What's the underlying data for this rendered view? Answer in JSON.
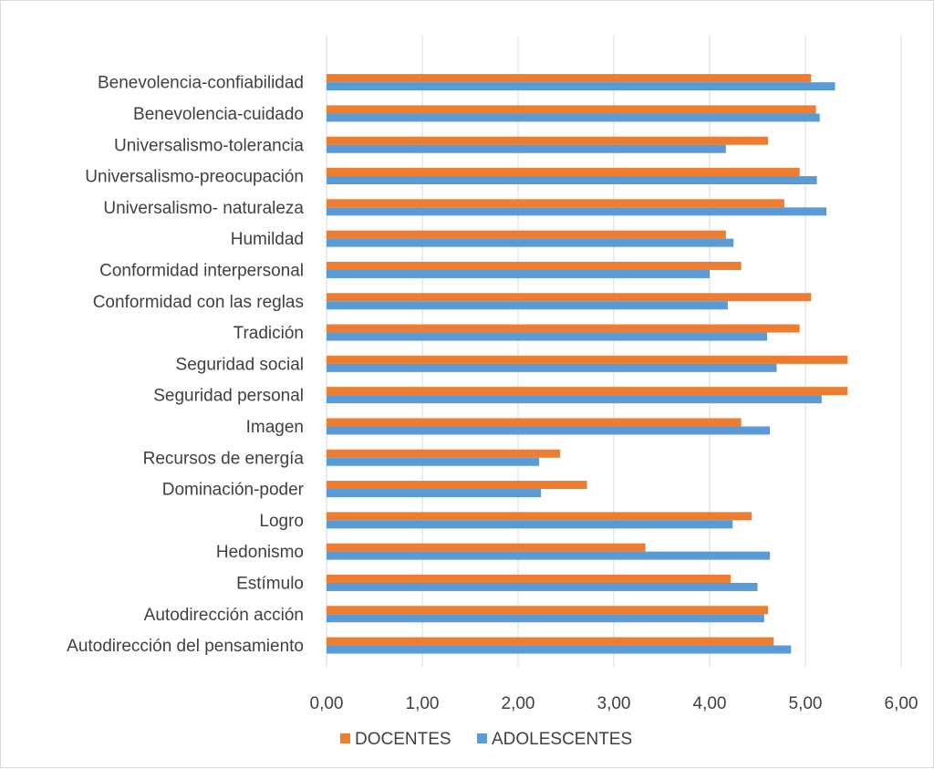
{
  "chart_data": {
    "type": "bar",
    "orientation": "horizontal",
    "title": "",
    "xlabel": "",
    "ylabel": "",
    "xlim": [
      0,
      6
    ],
    "x_ticks": [
      "0,00",
      "1,00",
      "2,00",
      "3,00",
      "4,00",
      "5,00",
      "6,00"
    ],
    "grid": "vertical",
    "legend_position": "bottom",
    "categories": [
      "Benevolencia-confiabilidad",
      "Benevolencia-cuidado",
      "Universalismo-tolerancia",
      "Universalismo-preocupación",
      "Universalismo- naturaleza",
      "Humildad",
      "Conformidad interpersonal",
      "Conformidad con las reglas",
      "Tradición",
      "Seguridad social",
      "Seguridad personal",
      "Imagen",
      "Recursos de energía",
      "Dominación-poder",
      "Logro",
      "Hedonismo",
      "Estímulo",
      "Autodirección acción",
      "Autodirección del pensamiento"
    ],
    "series": [
      {
        "name": "DOCENTES",
        "color": "#ED7D31",
        "values": [
          5.06,
          5.11,
          4.61,
          4.94,
          4.78,
          4.17,
          4.33,
          5.06,
          4.94,
          5.44,
          5.44,
          4.33,
          2.44,
          2.72,
          4.44,
          3.33,
          4.22,
          4.61,
          4.67
        ]
      },
      {
        "name": "ADOLESCENTES",
        "color": "#5B9BD5",
        "values": [
          5.31,
          5.15,
          4.17,
          5.12,
          5.22,
          4.25,
          4.0,
          4.19,
          4.6,
          4.7,
          5.17,
          4.63,
          2.22,
          2.24,
          4.24,
          4.63,
          4.5,
          4.57,
          4.85
        ]
      }
    ]
  }
}
